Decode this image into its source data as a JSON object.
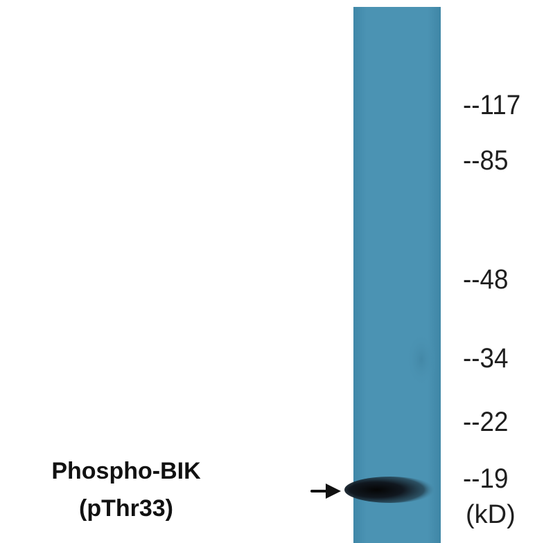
{
  "lane": {
    "color": "#4a90b0",
    "band_color": "#111111"
  },
  "sample": {
    "name": "Phospho-BIK",
    "site": "(pThr33)",
    "arrow_icon": "right-arrow"
  },
  "markers": [
    {
      "label": "--117",
      "kd": 117
    },
    {
      "label": "--85",
      "kd": 85
    },
    {
      "label": "--48",
      "kd": 48
    },
    {
      "label": "--34",
      "kd": 34
    },
    {
      "label": "--22",
      "kd": 22
    },
    {
      "label": "--19",
      "kd": 19
    }
  ],
  "unit": "(kD)"
}
